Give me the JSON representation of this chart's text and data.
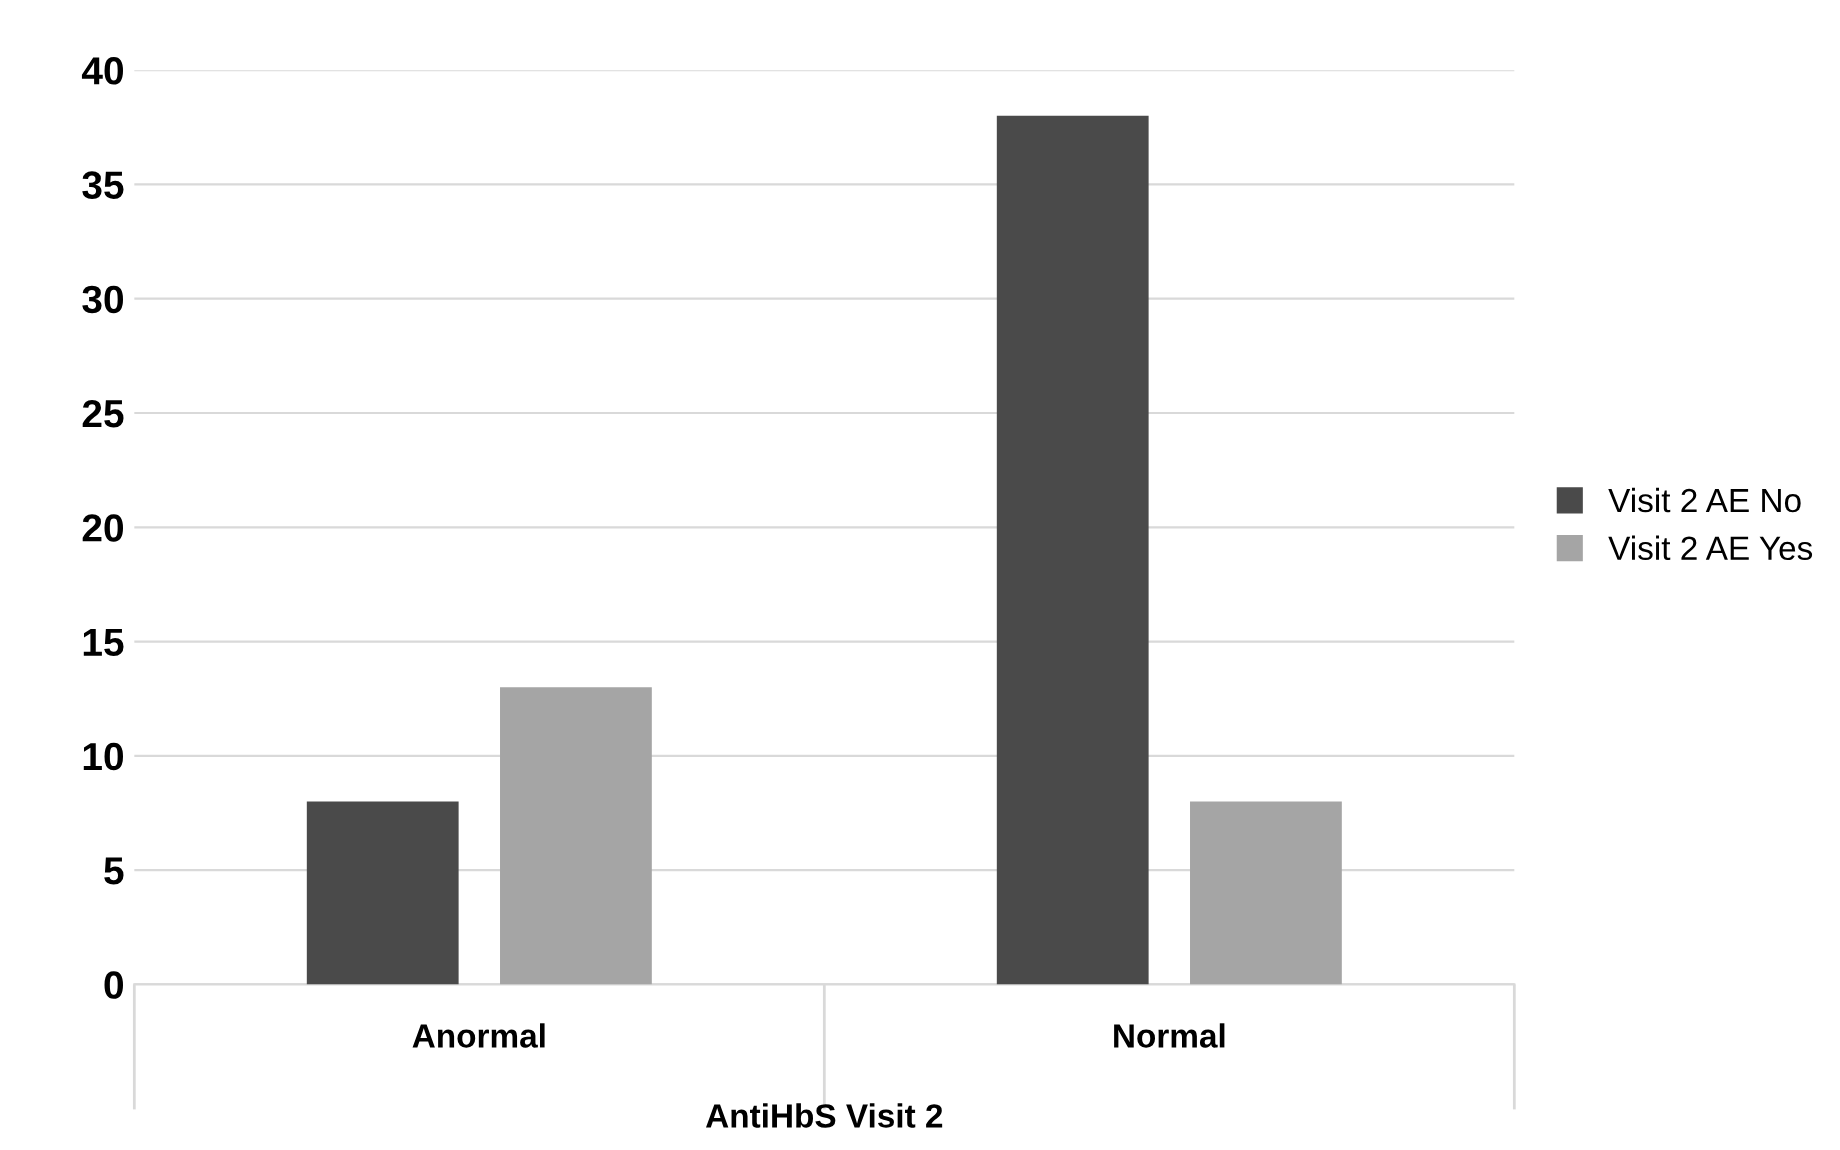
{
  "chart_data": {
    "type": "bar",
    "xlabel": "AntiHbS Visit 2",
    "categories": [
      "Anormal",
      "Normal"
    ],
    "series": [
      {
        "name": "Visit 2 AE No",
        "color": "#4a4a4a",
        "values": [
          8,
          38
        ]
      },
      {
        "name": "Visit 2 AE Yes",
        "color": "#a5a5a5",
        "values": [
          13,
          8
        ]
      }
    ],
    "ylim": [
      0,
      40
    ],
    "yticks": [
      0,
      5,
      10,
      15,
      20,
      25,
      30,
      35,
      40
    ],
    "grid": "y",
    "legend": "right"
  }
}
